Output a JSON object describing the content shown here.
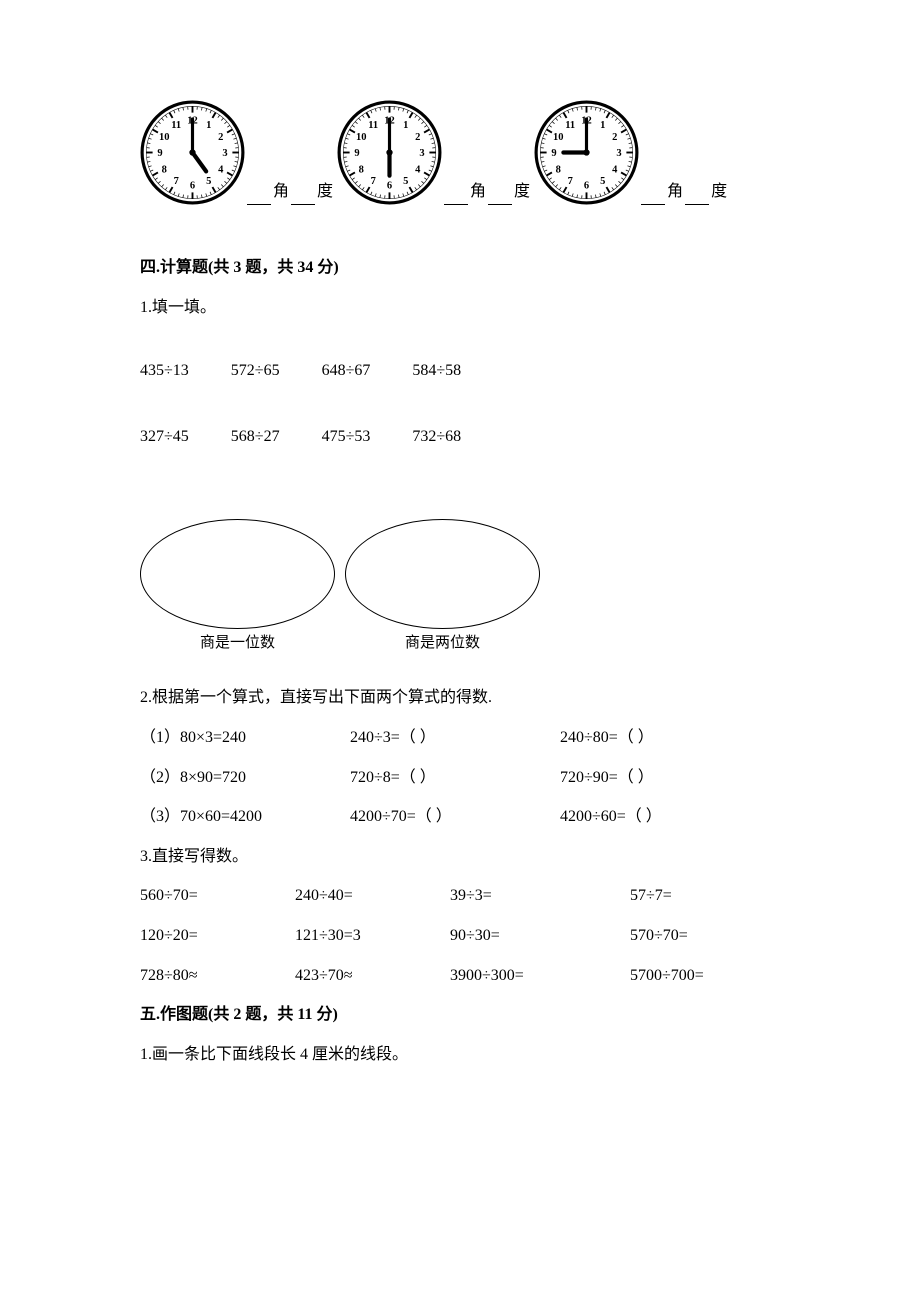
{
  "clocks": [
    {
      "hour": 5,
      "minute": 0,
      "angle_label": "角",
      "degree_label": "度"
    },
    {
      "hour": 6,
      "minute": 0,
      "angle_label": "角",
      "degree_label": "度"
    },
    {
      "hour": 9,
      "minute": 0,
      "angle_label": "角",
      "degree_label": "度"
    }
  ],
  "section4": {
    "title": "四.计算题(共 3 题，共 34 分)",
    "q1": {
      "label": "1.填一填。",
      "row1": [
        "435÷13",
        "572÷65",
        "648÷67",
        "584÷58"
      ],
      "row2": [
        "327÷45",
        "568÷27",
        "475÷53",
        "732÷68"
      ],
      "ellipse1_label": "商是一位数",
      "ellipse2_label": "商是两位数"
    },
    "q2": {
      "label": "2.根据第一个算式，直接写出下面两个算式的得数.",
      "rows": [
        {
          "a": "（1）80×3=240",
          "b": "240÷3=（      ）",
          "c": "240÷80=（      ）"
        },
        {
          "a": "（2）8×90=720",
          "b": "720÷8=（      ）",
          "c": "720÷90=（      ）"
        },
        {
          "a": "（3）70×60=4200",
          "b": "4200÷70=（      ）",
          "c": "4200÷60=（      ）"
        }
      ]
    },
    "q3": {
      "label": "3.直接写得数。",
      "rows": [
        [
          "560÷70=",
          "240÷40=",
          "39÷3=",
          "57÷7="
        ],
        [
          "120÷20=",
          "121÷30=3",
          "90÷30=",
          "570÷70="
        ],
        [
          "728÷80≈",
          "423÷70≈",
          "3900÷300=",
          "5700÷700="
        ]
      ]
    }
  },
  "section5": {
    "title": "五.作图题(共 2 题，共 11 分)",
    "q1": "1.画一条比下面线段长 4 厘米的线段。"
  },
  "clock_style": {
    "face_stroke": "#000000",
    "face_fill": "#ffffff",
    "hand_color": "#000000",
    "number_fontsize": 9
  }
}
